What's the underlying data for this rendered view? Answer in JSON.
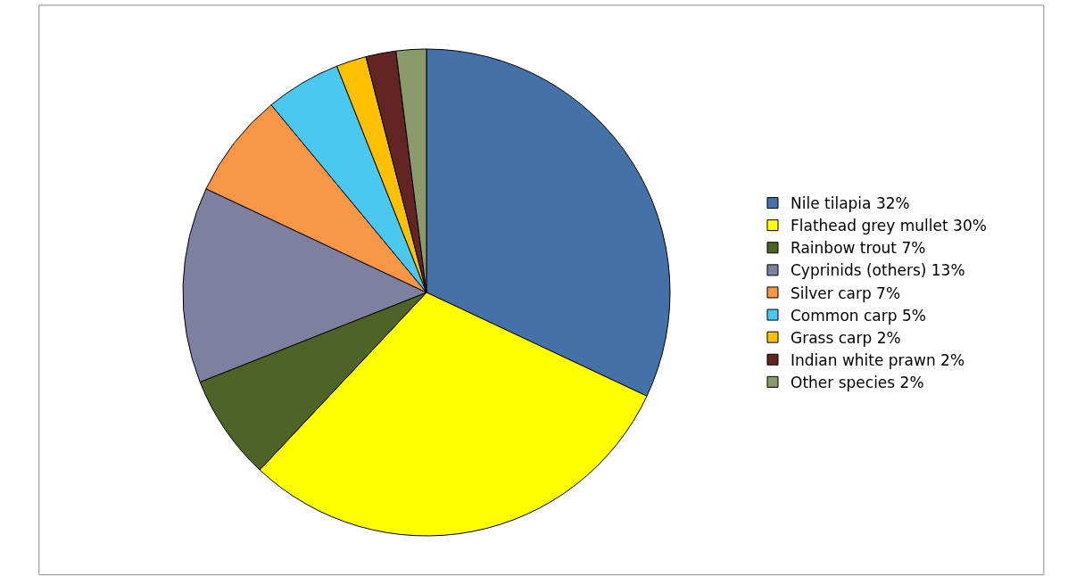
{
  "chart_data": {
    "type": "pie",
    "categories": [
      "Nile tilapia 32%",
      "Flathead grey mullet 30%",
      "Rainbow trout 7%",
      "Cyprinids (others) 13%",
      "Silver carp 7%",
      "Common carp 5%",
      "Grass carp 2%",
      "Indian white prawn 2%",
      "Other species 2%"
    ],
    "values": [
      32,
      30,
      7,
      13,
      7,
      5,
      2,
      2,
      2
    ],
    "colors": [
      "#4472a8",
      "#ffff00",
      "#4f6228",
      "#7f7f9f",
      "#f79646",
      "#4bc8f0",
      "#ffc000",
      "#632523",
      "#8a9a6a"
    ],
    "legend": "right"
  }
}
